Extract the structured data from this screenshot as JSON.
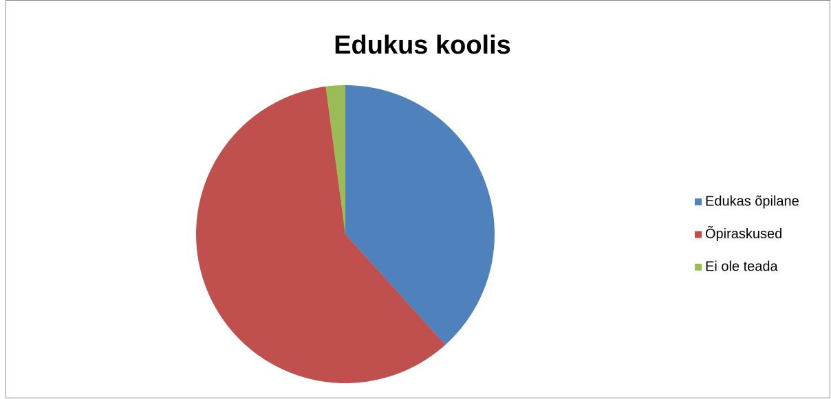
{
  "chart_data": {
    "type": "pie",
    "title": "Edukus koolis",
    "categories": [
      "Edukas õpilane",
      "Õpiraskused",
      "Ei ole teada"
    ],
    "values": [
      38.3,
      59.6,
      2.1
    ],
    "colors": [
      "#4f81bd",
      "#c0504d",
      "#9bbb59"
    ],
    "legend": "right"
  }
}
